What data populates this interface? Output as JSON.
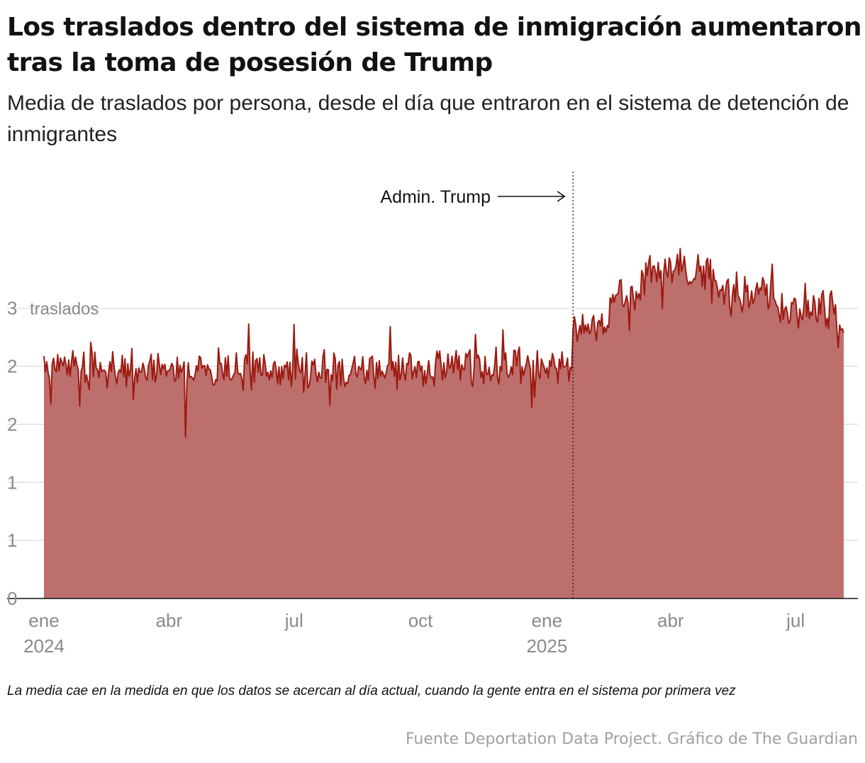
{
  "header": {
    "title": "Los traslados dentro del sistema de inmigración aumentaron tras la toma de posesión de Trump",
    "subtitle": "Media de traslados por persona, desde el día que entraron en el sistema de detención de inmigrantes"
  },
  "footer": {
    "note": "La media cae en la medida en que los datos se acercan al día actual, cuando la gente entra en el sistema por primera vez",
    "source": "Fuente Deportation Data Project. Gráfico de The Guardian"
  },
  "colors": {
    "line": "#9c1a10",
    "area": "#bd6f6d",
    "grid": "#dcdcdc",
    "axis": "#121212",
    "annotation": "#121212"
  },
  "chart_data": {
    "type": "area",
    "title": "Media de traslados por persona",
    "xlabel": "",
    "ylabel": "traslados",
    "ylim": [
      0,
      3.75
    ],
    "y_ticks": [
      {
        "value": 0,
        "label": "0"
      },
      {
        "value": 0.5,
        "label": "1"
      },
      {
        "value": 1.0,
        "label": "1"
      },
      {
        "value": 1.5,
        "label": "2"
      },
      {
        "value": 2.0,
        "label": "2"
      },
      {
        "value": 2.5,
        "label": "3"
      }
    ],
    "y_unit_label": "traslados",
    "x_range": [
      "2024-01-01",
      "2025-08-05"
    ],
    "x_ticks": [
      {
        "date": "2024-01-01",
        "label": "ene",
        "year": "2024"
      },
      {
        "date": "2024-04-01",
        "label": "abr",
        "year": ""
      },
      {
        "date": "2024-07-01",
        "label": "jul",
        "year": ""
      },
      {
        "date": "2024-10-01",
        "label": "oct",
        "year": ""
      },
      {
        "date": "2025-01-01",
        "label": "ene",
        "year": "2025"
      },
      {
        "date": "2025-04-01",
        "label": "abr",
        "year": ""
      },
      {
        "date": "2025-07-01",
        "label": "jul",
        "year": ""
      }
    ],
    "annotation": {
      "date": "2025-01-20",
      "label": "Admin. Trump"
    },
    "segments": [
      {
        "start": "2024-01-01",
        "end": "2024-04-12",
        "mean": 1.98,
        "amplitude": 0.14,
        "seed": 11
      },
      {
        "start": "2024-04-13",
        "end": "2024-04-13",
        "mean": 1.39,
        "amplitude": 0.0,
        "seed": 12
      },
      {
        "start": "2024-04-14",
        "end": "2024-10-10",
        "mean": 1.96,
        "amplitude": 0.15,
        "seed": 13
      },
      {
        "start": "2024-10-11",
        "end": "2025-01-19",
        "mean": 2.0,
        "amplitude": 0.16,
        "seed": 14
      },
      {
        "start": "2025-01-20",
        "end": "2025-02-15",
        "mean": 2.34,
        "amplitude": 0.1,
        "seed": 15
      },
      {
        "start": "2025-02-16",
        "end": "2025-03-10",
        "mean": 2.6,
        "amplitude": 0.13,
        "seed": 16
      },
      {
        "start": "2025-03-11",
        "end": "2025-04-30",
        "mean": 2.83,
        "amplitude": 0.17,
        "seed": 17
      },
      {
        "start": "2025-05-01",
        "end": "2025-06-15",
        "mean": 2.63,
        "amplitude": 0.15,
        "seed": 18
      },
      {
        "start": "2025-06-16",
        "end": "2025-08-02",
        "mean": 2.49,
        "amplitude": 0.17,
        "seed": 19
      },
      {
        "start": "2025-08-03",
        "end": "2025-08-05",
        "mean": 2.3,
        "amplitude": 0.02,
        "seed": 20
      }
    ]
  }
}
